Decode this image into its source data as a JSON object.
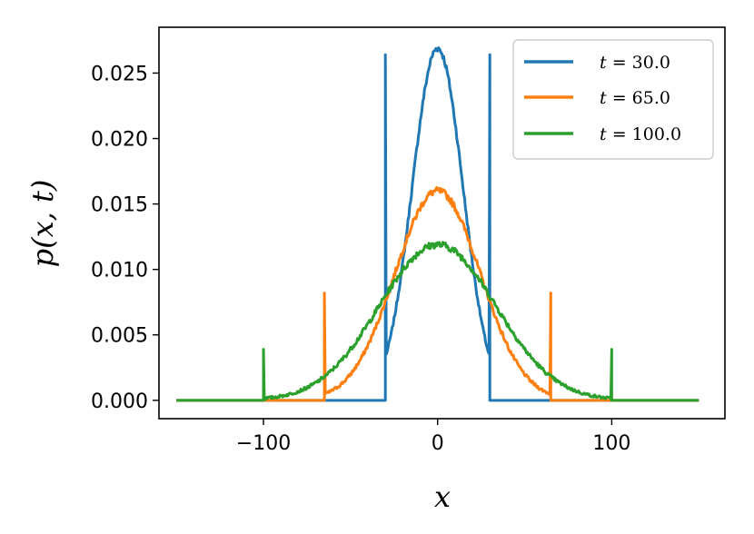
{
  "chart_data": {
    "type": "line",
    "xlabel": "x",
    "ylabel": "p(x, t)",
    "xlim": [
      -160,
      165
    ],
    "ylim": [
      -0.0014,
      0.0285
    ],
    "x_ticks": [
      -100,
      0,
      100
    ],
    "x_tick_labels": [
      "−100",
      "0",
      "100"
    ],
    "y_ticks": [
      0.0,
      0.005,
      0.01,
      0.015,
      0.02,
      0.025
    ],
    "y_tick_labels": [
      "0.000",
      "0.005",
      "0.010",
      "0.015",
      "0.020",
      "0.025"
    ],
    "grid": false,
    "legend_position": "upper-right",
    "series": [
      {
        "name": "t = 30.0",
        "t_label": "t",
        "value_label": "= 30.0",
        "color": "#1f77b4",
        "t": 30,
        "boundary": 30,
        "sigma": 14.6,
        "peak": 0.0269,
        "spike": 0.0264
      },
      {
        "name": "t = 65.0",
        "t_label": "t",
        "value_label": "= 65.0",
        "color": "#ff7f0e",
        "t": 65,
        "boundary": 65,
        "sigma": 24.5,
        "peak": 0.016,
        "spike": 0.0082
      },
      {
        "name": "t = 100.0",
        "t_label": "t",
        "value_label": "= 100.0",
        "color": "#2ca02c",
        "t": 100,
        "boundary": 100,
        "sigma": 33.5,
        "peak": 0.0119,
        "spike": 0.0039
      }
    ],
    "x_range": [
      -150,
      150
    ]
  }
}
